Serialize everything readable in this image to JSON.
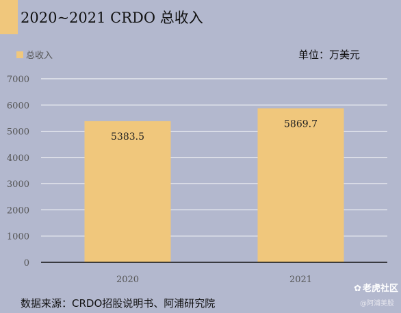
{
  "header": {
    "title": "2020~2021 CRDO 总收入"
  },
  "unit": "单位：万美元",
  "source": "数据来源：CRDO招股说明书、阿浦研究院",
  "watermark": {
    "main": "老虎社区",
    "sub": "@阿浦美股"
  },
  "colors": {
    "bar": "#f0c77c",
    "background": "#b3b8ce",
    "grid": "#ffffff",
    "axis": "#111111"
  },
  "chart_data": {
    "type": "bar",
    "title": "2020~2021 CRDO 总收入",
    "categories": [
      "2020",
      "2021"
    ],
    "series": [
      {
        "name": "总收入",
        "values": [
          5383.5,
          5869.7
        ]
      }
    ],
    "data_labels": [
      "5383.5",
      "5869.7"
    ],
    "ylim": [
      0,
      7000
    ],
    "yticks": [
      0,
      1000,
      2000,
      3000,
      4000,
      5000,
      6000,
      7000
    ],
    "grid": true,
    "legend": "top-left"
  }
}
